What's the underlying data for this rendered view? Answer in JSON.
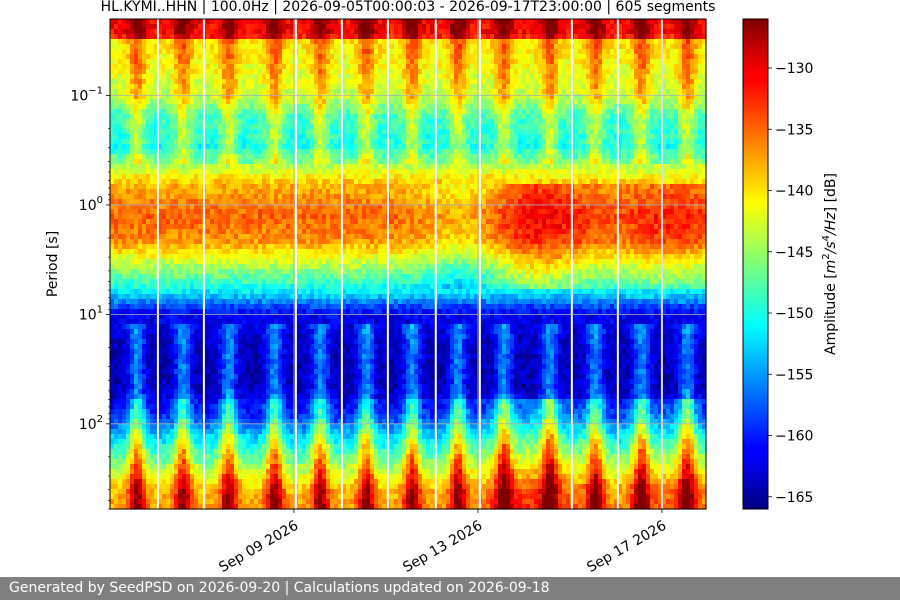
{
  "chart_data": {
    "type": "heatmap",
    "title": "HL.KYMI..HHN | 100.0Hz | 2026-09-05T00:00:03 - 2026-09-17T23:00:00 | 605 segments",
    "xlabel": "",
    "ylabel": "Period [s]",
    "x_range": [
      "2026-09-05T00:00:03",
      "2026-09-17T23:00:00"
    ],
    "x_ticks": [
      {
        "date": "2026-09-09",
        "label": "Sep 09 2026"
      },
      {
        "date": "2026-09-13",
        "label": "Sep 13 2026"
      },
      {
        "date": "2026-09-17",
        "label": "Sep 17 2026"
      }
    ],
    "y_scale": "log",
    "y_inverted": true,
    "y_range": [
      0.02,
      600
    ],
    "y_ticks": [
      {
        "value": 0.1,
        "base": "10",
        "exp": "−1"
      },
      {
        "value": 1,
        "base": "10",
        "exp": "0"
      },
      {
        "value": 10,
        "base": "10",
        "exp": "1"
      },
      {
        "value": 100,
        "base": "10",
        "exp": "2"
      }
    ],
    "grid": true,
    "colormap": "jet",
    "colorbar": {
      "label_main": "Amplitude [",
      "label_unit_m": "m",
      "label_unit_exp2": "2",
      "label_unit_s": "/s",
      "label_unit_exp4": "4",
      "label_unit_tail": "/Hz",
      "label_end": "] [dB]",
      "range": [
        -166,
        -126
      ],
      "ticks": [
        -130,
        -135,
        -140,
        -145,
        -150,
        -155,
        -160,
        -165
      ],
      "tick_labels": [
        "−130",
        "−135",
        "−140",
        "−145",
        "−150",
        "−155",
        "−160",
        "−165"
      ]
    },
    "gap_dates": [
      "2026-09-06T01:00",
      "2026-09-07T01:00",
      "2026-09-09T01:00",
      "2026-09-10T01:00",
      "2026-09-11T01:00",
      "2026-09-12T02:00",
      "2026-09-13T01:00",
      "2026-09-15T01:00",
      "2026-09-16T01:00",
      "2026-09-17T00:00"
    ]
  },
  "footer": {
    "text": "Generated by SeedPSD on 2026-09-20 | Calculations updated on 2026-09-18"
  }
}
